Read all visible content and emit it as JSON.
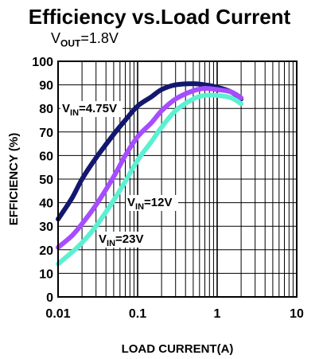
{
  "chart_data": {
    "type": "line",
    "title": "Efficiency vs.Load Current",
    "subtitle": {
      "main": "V",
      "sub": "OUT",
      "rest": "=1.8V"
    },
    "xlabel": "LOAD CURRENT(A)",
    "ylabel": "EFFICIENCY (%)",
    "x_scale": "log",
    "xlim": [
      0.01,
      10
    ],
    "ylim": [
      0,
      100
    ],
    "x_ticks": [
      0.01,
      0.1,
      1,
      10
    ],
    "x_tick_labels": [
      "0.01",
      "0.1",
      "1",
      "10"
    ],
    "y_ticks": [
      0,
      10,
      20,
      30,
      40,
      50,
      60,
      70,
      80,
      90,
      100
    ],
    "y_tick_labels": [
      "0",
      "10",
      "20",
      "30",
      "40",
      "50",
      "60",
      "70",
      "80",
      "90",
      "100"
    ],
    "grid": true,
    "series": [
      {
        "label_main": "V",
        "label_sub": "IN",
        "label_rest": "=4.75V",
        "color": "#13186e",
        "x": [
          0.01,
          0.015,
          0.02,
          0.03,
          0.05,
          0.07,
          0.1,
          0.15,
          0.2,
          0.3,
          0.5,
          0.7,
          1,
          1.5,
          2
        ],
        "y": [
          33,
          42,
          50,
          59,
          69,
          75,
          81,
          85,
          88,
          90,
          90.5,
          90,
          89,
          87,
          84
        ]
      },
      {
        "label_main": "V",
        "label_sub": "IN",
        "label_rest": "=12V",
        "color": "#a64dff",
        "x": [
          0.01,
          0.015,
          0.02,
          0.03,
          0.05,
          0.07,
          0.1,
          0.15,
          0.2,
          0.3,
          0.5,
          0.7,
          1,
          1.5,
          2
        ],
        "y": [
          21,
          26,
          31,
          39,
          51,
          60,
          68,
          74,
          79,
          84,
          87.5,
          88.5,
          88,
          87,
          84.5
        ]
      },
      {
        "label_main": "V",
        "label_sub": "IN",
        "label_rest": "=23V",
        "color": "#5cf0d2",
        "x": [
          0.01,
          0.015,
          0.02,
          0.03,
          0.05,
          0.07,
          0.1,
          0.15,
          0.2,
          0.3,
          0.5,
          0.7,
          1,
          1.5,
          2
        ],
        "y": [
          14,
          19,
          23,
          30,
          41,
          49,
          58,
          66,
          72,
          79,
          84,
          85.5,
          85.5,
          84.5,
          82
        ]
      }
    ]
  }
}
